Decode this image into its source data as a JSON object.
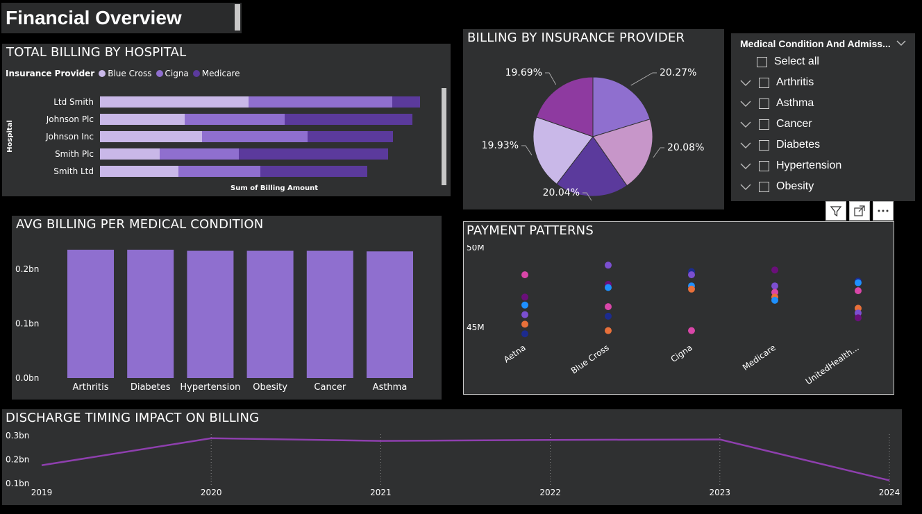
{
  "page_title": "Financial Overview",
  "colors": {
    "blue_cross": "#c9b8e8",
    "cigna": "#8f6fcf",
    "medicare": "#5b3a9c",
    "bar": "#8f6fcf",
    "line": "#8e3fae"
  },
  "hospital_billing": {
    "title": "TOTAL BILLING BY HOSPITAL",
    "legend_label": "Insurance Provider",
    "legend": [
      "Blue Cross",
      "Cigna",
      "Medicare"
    ],
    "y_axis_label": "Hospital",
    "x_axis_label": "Sum of Billing Amount",
    "chart_data": {
      "type": "bar",
      "orientation": "horizontal",
      "stacked": true,
      "categories": [
        "Ltd Smith",
        "Johnson Plc",
        "Johnson Inc",
        "Smith Plc",
        "Smith Ltd"
      ],
      "series": [
        {
          "name": "Blue Cross",
          "values": [
            214,
            122,
            147,
            86,
            113
          ]
        },
        {
          "name": "Cigna",
          "values": [
            207,
            144,
            152,
            114,
            118
          ]
        },
        {
          "name": "Medicare",
          "values": [
            40,
            184,
            123,
            215,
            154
          ]
        }
      ]
    }
  },
  "insurance_pie": {
    "title": "BILLING BY INSURANCE PROVIDER",
    "chart_data": {
      "type": "pie",
      "labels": [
        "20.27%",
        "20.08%",
        "20.04%",
        "19.93%",
        "19.69%"
      ],
      "values": [
        20.27,
        20.08,
        20.04,
        19.93,
        19.69
      ],
      "colors": [
        "#8f6fcf",
        "#c796c9",
        "#5b3a9c",
        "#c9b8e8",
        "#8e3aa0"
      ]
    }
  },
  "slicer": {
    "title": "Medical Condition And Admiss...",
    "select_all": "Select all",
    "items": [
      "Arthritis",
      "Asthma",
      "Cancer",
      "Diabetes",
      "Hypertension",
      "Obesity"
    ]
  },
  "avg_billing": {
    "title": "AVG BILLING PER MEDICAL CONDITION",
    "chart_data": {
      "type": "bar",
      "categories": [
        "Arthritis",
        "Diabetes",
        "Hypertension",
        "Obesity",
        "Cancer",
        "Asthma"
      ],
      "values": [
        0.236,
        0.236,
        0.234,
        0.234,
        0.234,
        0.233
      ],
      "ylim": [
        0,
        0.25
      ],
      "y_ticks": [
        {
          "v": 0.2,
          "label": "0.2bn"
        },
        {
          "v": 0.1,
          "label": "0.1bn"
        },
        {
          "v": 0,
          "label": "0.0bn"
        }
      ]
    }
  },
  "payment_patterns": {
    "title": "PAYMENT PATTERNS",
    "chart_data": {
      "type": "scatter",
      "categories": [
        "Aetna",
        "Blue Cross",
        "Cigna",
        "Medicare",
        "UnitedHealth..."
      ],
      "ylim": [
        44.0,
        50.0
      ],
      "y_ticks": [
        {
          "v": 50,
          "label": "50M"
        },
        {
          "v": 45,
          "label": "45M"
        }
      ],
      "points": [
        {
          "c": 0,
          "y": 48.3,
          "color": "#d946a8"
        },
        {
          "c": 0,
          "y": 46.9,
          "color": "#6a0f7a"
        },
        {
          "c": 0,
          "y": 46.4,
          "color": "#1e90ff"
        },
        {
          "c": 0,
          "y": 45.8,
          "color": "#7b4fd0"
        },
        {
          "c": 0,
          "y": 45.2,
          "color": "#e8703a"
        },
        {
          "c": 0,
          "y": 44.6,
          "color": "#1c2b8f"
        },
        {
          "c": 1,
          "y": 48.9,
          "color": "#7b4fd0"
        },
        {
          "c": 1,
          "y": 47.7,
          "color": "#6a0f7a"
        },
        {
          "c": 1,
          "y": 47.5,
          "color": "#1e90ff"
        },
        {
          "c": 1,
          "y": 46.3,
          "color": "#d946a8"
        },
        {
          "c": 1,
          "y": 45.7,
          "color": "#1c2b8f"
        },
        {
          "c": 1,
          "y": 44.8,
          "color": "#e8703a"
        },
        {
          "c": 2,
          "y": 48.5,
          "color": "#1c2b8f"
        },
        {
          "c": 2,
          "y": 48.3,
          "color": "#7b4fd0"
        },
        {
          "c": 2,
          "y": 47.6,
          "color": "#1e90ff"
        },
        {
          "c": 2,
          "y": 47.4,
          "color": "#e8703a"
        },
        {
          "c": 2,
          "y": 44.8,
          "color": "#d946a8"
        },
        {
          "c": 3,
          "y": 48.6,
          "color": "#6a0f7a"
        },
        {
          "c": 3,
          "y": 47.6,
          "color": "#7b4fd0"
        },
        {
          "c": 3,
          "y": 47.2,
          "color": "#d946a8"
        },
        {
          "c": 3,
          "y": 46.9,
          "color": "#e8703a"
        },
        {
          "c": 3,
          "y": 46.7,
          "color": "#1e90ff"
        },
        {
          "c": 4,
          "y": 47.9,
          "color": "#1c2b8f"
        },
        {
          "c": 4,
          "y": 47.8,
          "color": "#1e90ff"
        },
        {
          "c": 4,
          "y": 47.3,
          "color": "#d946a8"
        },
        {
          "c": 4,
          "y": 46.2,
          "color": "#e8703a"
        },
        {
          "c": 4,
          "y": 45.9,
          "color": "#7b4fd0"
        },
        {
          "c": 4,
          "y": 45.6,
          "color": "#6a0f7a"
        }
      ]
    }
  },
  "discharge": {
    "title": "DISCHARGE TIMING IMPACT ON BILLING",
    "chart_data": {
      "type": "line",
      "x": [
        "2019",
        "2020",
        "2021",
        "2022",
        "2023",
        "2024"
      ],
      "values": [
        0.176,
        0.289,
        0.278,
        0.282,
        0.284,
        0.113
      ],
      "ylim": [
        0.1,
        0.31
      ],
      "y_ticks": [
        {
          "v": 0.3,
          "label": "0.3bn"
        },
        {
          "v": 0.2,
          "label": "0.2bn"
        },
        {
          "v": 0.1,
          "label": "0.1bn"
        }
      ]
    }
  }
}
